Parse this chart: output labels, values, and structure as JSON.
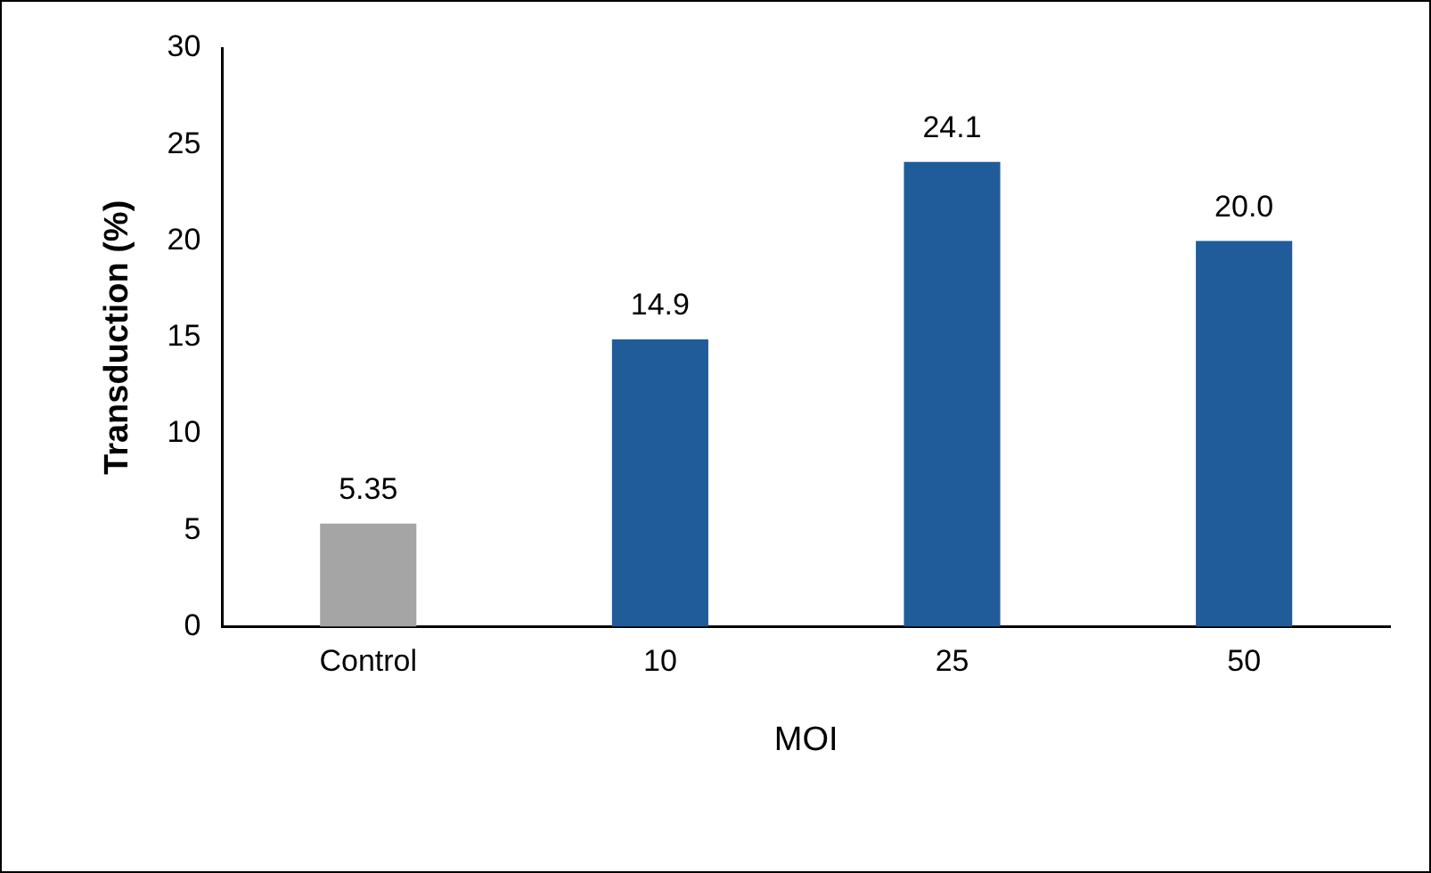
{
  "chart_data": {
    "type": "bar",
    "xlabel": "MOI",
    "ylabel": "Transduction (%)",
    "categories": [
      "Control",
      "10",
      "25",
      "50"
    ],
    "values": [
      5.35,
      14.9,
      24.1,
      20.0
    ],
    "value_labels": [
      "5.35",
      "14.9",
      "24.1",
      "20.0"
    ],
    "colors": [
      "#a5a5a5",
      "#1f5c99",
      "#1f5c99",
      "#1f5c99"
    ],
    "ylim": [
      0,
      30
    ],
    "yticks": [
      0,
      5,
      10,
      15,
      20,
      25,
      30
    ],
    "grid": false,
    "legend": false
  }
}
